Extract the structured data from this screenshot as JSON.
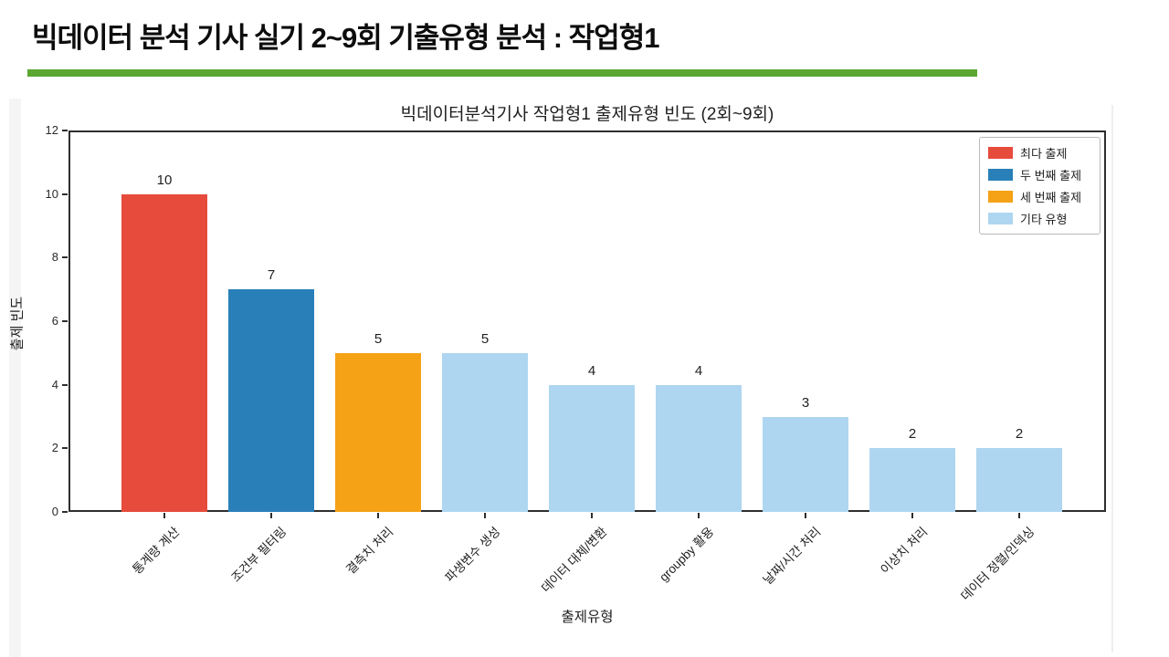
{
  "header": {
    "title": "빅데이터 분석 기사 실기 2~9회 기출유형 분석 : 작업형1",
    "accent_color": "#5aa732"
  },
  "chart_data": {
    "type": "bar",
    "title": "빅데이터분석기사 작업형1 출제유형 빈도 (2회~9회)",
    "xlabel": "출제유형",
    "ylabel": "출제 빈도",
    "ylim": [
      0,
      12
    ],
    "yticks": [
      0,
      2,
      4,
      6,
      8,
      10,
      12
    ],
    "grid": false,
    "legend_position": "upper right",
    "categories": [
      "통계량 계산",
      "조건부 필터링",
      "결측치 처리",
      "파생변수 생성",
      "데이터 대체/변환",
      "groupby 활용",
      "날짜/시간 처리",
      "이상치 처리",
      "데이터 정렬/인덱싱"
    ],
    "values": [
      10,
      7,
      5,
      5,
      4,
      4,
      3,
      2,
      2
    ],
    "bar_colors": [
      "#e64b3c",
      "#2980b9",
      "#f5a216",
      "#aed6f0",
      "#aed6f0",
      "#aed6f0",
      "#aed6f0",
      "#aed6f0",
      "#aed6f0"
    ],
    "legend": [
      {
        "label": "최다 출제",
        "color": "#e64b3c"
      },
      {
        "label": "두 번째 출제",
        "color": "#2980b9"
      },
      {
        "label": "세 번째 출제",
        "color": "#f5a216"
      },
      {
        "label": "기타 유형",
        "color": "#aed6f0"
      }
    ]
  }
}
